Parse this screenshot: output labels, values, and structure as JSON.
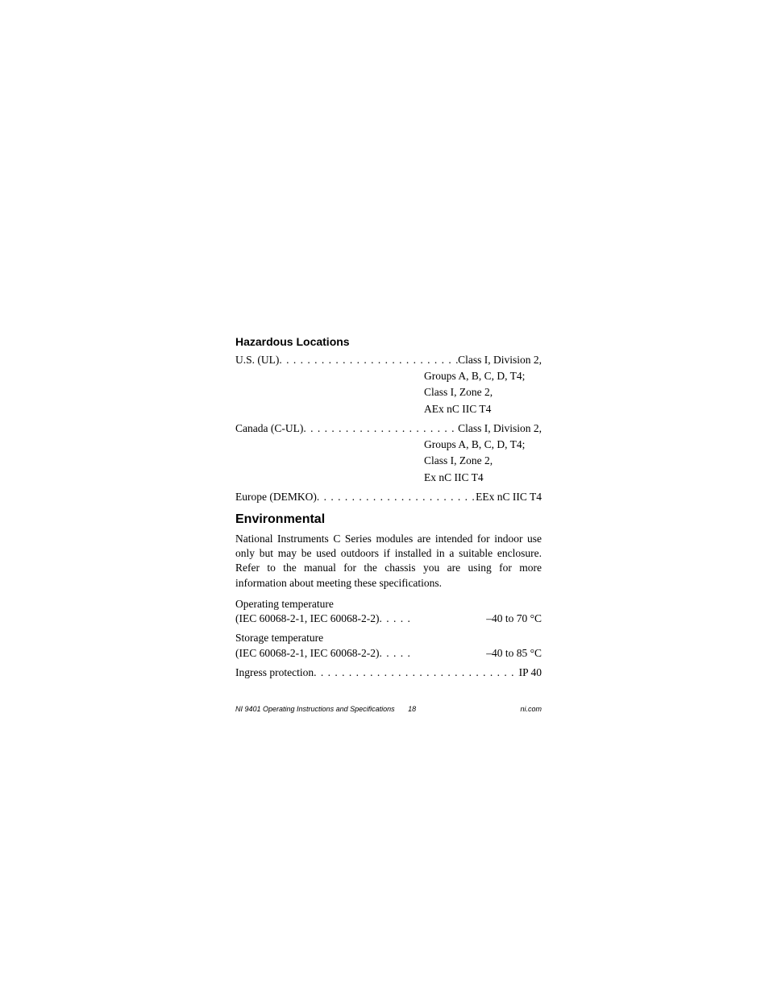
{
  "headings": {
    "hazloc": "Hazardous Locations",
    "env": "Environmental"
  },
  "hazloc": {
    "us": {
      "label": "U.S. (UL)",
      "lines": [
        "Class I, Division 2,",
        "Groups A, B, C, D, T4;",
        "Class I, Zone 2,",
        "AEx nC IIC T4"
      ]
    },
    "canada": {
      "label": "Canada (C-UL)",
      "lines": [
        "Class I, Division 2,",
        "Groups A, B, C, D, T4;",
        "Class I, Zone 2,",
        "Ex nC IIC T4"
      ]
    },
    "europe": {
      "label": "Europe (DEMKO)",
      "value": "EEx nC IIC T4"
    }
  },
  "env": {
    "para": "National Instruments C Series modules are intended for indoor use only but may be used outdoors if installed in a suitable enclosure. Refer to the manual for the chassis you are using for more information about meeting these specifications.",
    "op_temp": {
      "label1": "Operating temperature",
      "label2": "(IEC 60068-2-1, IEC 60068-2-2)",
      "value": "–40 to 70 °C"
    },
    "storage_temp": {
      "label1": "Storage temperature",
      "label2": "(IEC 60068-2-1, IEC 60068-2-2)",
      "value": "–40 to 85 °C"
    },
    "ingress": {
      "label": "Ingress protection",
      "value": "IP 40"
    }
  },
  "footer": {
    "title": "NI 9401 Operating Instructions and Specifications",
    "page": "18",
    "site": "ni.com"
  },
  "dots": ". . . . . . . . . . . . . . . . . . . . . . . . . . . . . . . . . . . . . . . . . . . . . . . . . . . . . . . . . . . .",
  "dots_short": ". . . . ."
}
